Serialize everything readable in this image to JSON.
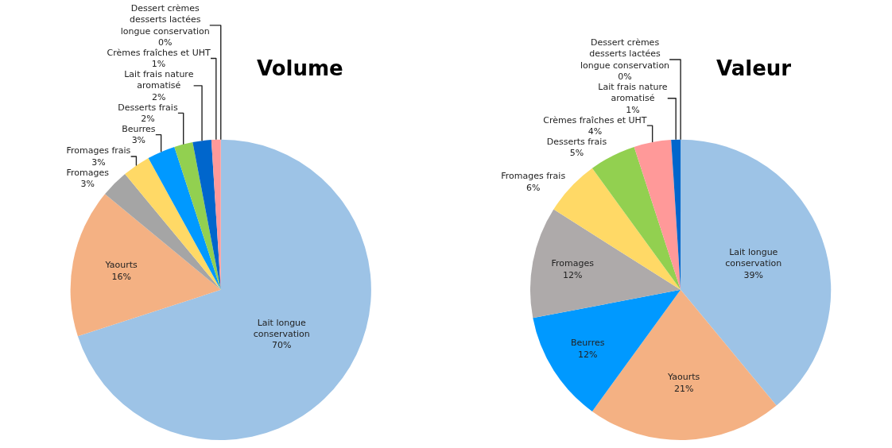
{
  "chart_data": [
    {
      "type": "pie",
      "title": "Volume",
      "categories": [
        "Lait longue conservation",
        "Yaourts",
        "Fromages",
        "Fromages frais",
        "Beurres",
        "Desserts frais",
        "Lait frais nature aromatisé",
        "Crèmes fraîches et UHT",
        "Dessert crèmes desserts lactées longue conservation"
      ],
      "values": [
        70,
        16,
        3,
        3,
        3,
        2,
        2,
        1,
        0
      ],
      "value_labels": [
        "70%",
        "16%",
        "3%",
        "3%",
        "3%",
        "2%",
        "2%",
        "1%",
        "0%"
      ],
      "colors": [
        "#9dc3e6",
        "#f4b183",
        "#a5a5a5",
        "#ffd966",
        "#0099ff",
        "#92d050",
        "#0066cc",
        "#ff9999",
        "#c00000"
      ]
    },
    {
      "type": "pie",
      "title": "Valeur",
      "categories": [
        "Lait longue conservation",
        "Yaourts",
        "Beurres",
        "Fromages",
        "Fromages frais",
        "Desserts frais",
        "Crèmes fraîches et UHT",
        "Lait frais nature aromatisé",
        "Dessert crèmes desserts lactées longue conservation"
      ],
      "values": [
        39,
        21,
        12,
        12,
        6,
        5,
        4,
        1,
        0
      ],
      "value_labels": [
        "39%",
        "21%",
        "12%",
        "12%",
        "6%",
        "5%",
        "4%",
        "1%",
        "0%"
      ],
      "colors": [
        "#9dc3e6",
        "#f4b183",
        "#0099ff",
        "#aeaaaa",
        "#ffd966",
        "#92d050",
        "#ff9999",
        "#0066cc",
        "#c00000"
      ]
    }
  ]
}
